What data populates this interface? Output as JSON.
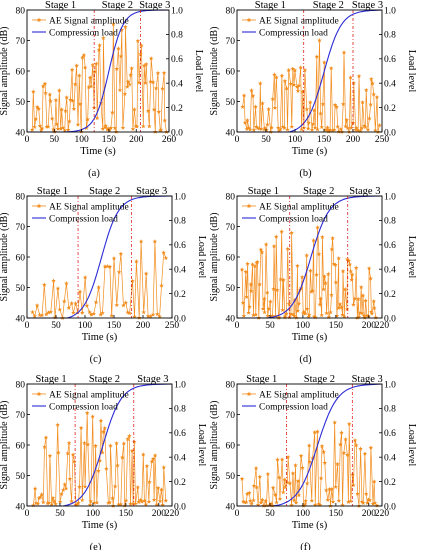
{
  "colors": {
    "ae": "#f28c1c",
    "load": "#2b2bd6",
    "stage": "#e0201b",
    "axis": "#000000"
  },
  "chart_data": [
    {
      "id": "a",
      "caption": "(a)",
      "type": "line",
      "xlabel": "Time (s)",
      "ylabel": "Signal amplitude (dB)",
      "y2label": "Load level",
      "xlim": [
        0,
        260
      ],
      "xticks": [
        0,
        50,
        100,
        150,
        200,
        260
      ],
      "ylim": [
        40,
        80
      ],
      "yticks": [
        40,
        50,
        60,
        70,
        80
      ],
      "y2lim": [
        0,
        1
      ],
      "y2ticks": [
        "0.0",
        "0.2",
        "0.4",
        "0.6",
        "0.8",
        "1.0"
      ],
      "stage_labels": [
        "Stage 1",
        "Stage 2",
        "Stage 3"
      ],
      "stage_boundaries": [
        123,
        208
      ],
      "legend": [
        "AE Signal amplitude",
        "Compression load"
      ],
      "legend_position": "top-left",
      "load_curve": {
        "x_start": 65,
        "x_mid": 150,
        "x_end": 250,
        "steepness": 13
      },
      "ae_series": {
        "name": "AE Signal amplitude",
        "x_start": 10,
        "x_end": 255,
        "count": 110,
        "peak_x": 160,
        "max_amplitude": 76,
        "seed": 11
      }
    },
    {
      "id": "b",
      "caption": "(b)",
      "type": "line",
      "xlabel": "Time (s)",
      "ylabel": "Signal amplitude (dB)",
      "y2label": "Load level",
      "xlim": [
        0,
        250
      ],
      "xticks": [
        0,
        50,
        100,
        150,
        200,
        250
      ],
      "ylim": [
        40,
        80
      ],
      "yticks": [
        40,
        50,
        60,
        70,
        80
      ],
      "y2lim": [
        0,
        1
      ],
      "y2ticks": [
        "0.0",
        "0.2",
        "0.4",
        "0.6",
        "0.8",
        "1.0"
      ],
      "stage_labels": [
        "Stage 1",
        "Stage 2",
        "Stage 3"
      ],
      "stage_boundaries": [
        115,
        200
      ],
      "legend": [
        "AE Signal amplitude",
        "Compression load"
      ],
      "legend_position": "top-left",
      "load_curve": {
        "x_start": 90,
        "x_mid": 150,
        "x_end": 235,
        "steepness": 15
      },
      "ae_series": {
        "name": "AE Signal amplitude",
        "x_start": 10,
        "x_end": 245,
        "count": 110,
        "peak_x": 145,
        "max_amplitude": 72,
        "seed": 23
      }
    },
    {
      "id": "c",
      "caption": "(c)",
      "type": "line",
      "xlabel": "Time (s)",
      "ylabel": "Signal amplitude (dB)",
      "y2label": "Load level",
      "xlim": [
        0,
        250
      ],
      "xticks": [
        0,
        50,
        100,
        150,
        200,
        250
      ],
      "ylim": [
        40,
        80
      ],
      "yticks": [
        40,
        50,
        60,
        70,
        80
      ],
      "y2lim": [
        0,
        1
      ],
      "y2ticks": [
        "0.0",
        "0.2",
        "0.4",
        "0.6",
        "0.8",
        "1.0"
      ],
      "stage_labels": [
        "Stage 1",
        "Stage 2",
        "Stage 3"
      ],
      "stage_boundaries": [
        88,
        180
      ],
      "legend": [
        "AE Signal amplitude",
        "Compression load"
      ],
      "legend_position": "top-left",
      "load_curve": {
        "x_start": 70,
        "x_mid": 128,
        "x_end": 220,
        "steepness": 15
      },
      "ae_series": {
        "name": "AE Signal amplitude",
        "x_start": 10,
        "x_end": 240,
        "count": 60,
        "peak_x": 210,
        "max_amplitude": 68,
        "seed": 37
      }
    },
    {
      "id": "d",
      "caption": "(d)",
      "type": "line",
      "xlabel": "Time (s)",
      "ylabel": "Signal amplitude (dB)",
      "y2label": "Load level",
      "xlim": [
        0,
        220
      ],
      "xticks": [
        0,
        50,
        100,
        150,
        200,
        220
      ],
      "ylim": [
        40,
        80
      ],
      "yticks": [
        40,
        50,
        60,
        70,
        80
      ],
      "y2lim": [
        0,
        1
      ],
      "y2ticks": [
        "0.0",
        "0.2",
        "0.4",
        "0.6",
        "0.8",
        "1.0"
      ],
      "stage_labels": [
        "Stage 1",
        "Stage 2",
        "Stage 3"
      ],
      "stage_boundaries": [
        80,
        168
      ],
      "legend": [
        "AE Signal amplitude",
        "Compression load"
      ],
      "legend_position": "top-left",
      "load_curve": {
        "x_start": 45,
        "x_mid": 112,
        "x_end": 200,
        "steepness": 14
      },
      "ae_series": {
        "name": "AE Signal amplitude",
        "x_start": 8,
        "x_end": 210,
        "count": 130,
        "peak_x": 100,
        "max_amplitude": 72,
        "seed": 41
      }
    },
    {
      "id": "e",
      "caption": "(e)",
      "type": "line",
      "xlabel": "Time (s)",
      "ylabel": "Signal amplitude (dB)",
      "y2label": "Load level",
      "xlim": [
        0,
        220
      ],
      "xticks": [
        0,
        50,
        100,
        150,
        200,
        220
      ],
      "ylim": [
        40,
        80
      ],
      "yticks": [
        40,
        50,
        60,
        70,
        80
      ],
      "y2lim": [
        0,
        1
      ],
      "y2ticks": [
        "0.0",
        "0.2",
        "0.4",
        "0.6",
        "0.8",
        "1.0"
      ],
      "stage_labels": [
        "Stage 1",
        "Stage 2",
        "Stage 3"
      ],
      "stage_boundaries": [
        73,
        162
      ],
      "legend": [
        "AE Signal amplitude",
        "Compression load"
      ],
      "legend_position": "top-left",
      "load_curve": {
        "x_start": 55,
        "x_mid": 115,
        "x_end": 200,
        "steepness": 14
      },
      "ae_series": {
        "name": "AE Signal amplitude",
        "x_start": 10,
        "x_end": 210,
        "count": 95,
        "peak_x": 85,
        "max_amplitude": 75,
        "seed": 53
      }
    },
    {
      "id": "f",
      "caption": "(f)",
      "type": "line",
      "xlabel": "Time (s)",
      "ylabel": "Signal amplitude (dB)",
      "y2label": "Load level",
      "xlim": [
        0,
        220
      ],
      "xticks": [
        0,
        50,
        100,
        150,
        200,
        220
      ],
      "ylim": [
        40,
        80
      ],
      "yticks": [
        40,
        50,
        60,
        70,
        80
      ],
      "y2lim": [
        0,
        1
      ],
      "y2ticks": [
        "0.0",
        "0.2",
        "0.4",
        "0.6",
        "0.8",
        "1.0"
      ],
      "stage_labels": [
        "Stage 1",
        "Stage 2",
        "Stage 3"
      ],
      "stage_boundaries": [
        75,
        175
      ],
      "legend": [
        "AE Signal amplitude",
        "Compression load"
      ],
      "legend_position": "top-left",
      "load_curve": {
        "x_start": 55,
        "x_mid": 122,
        "x_end": 195,
        "steepness": 15
      },
      "ae_series": {
        "name": "AE Signal amplitude",
        "x_start": 8,
        "x_end": 212,
        "count": 100,
        "peak_x": 150,
        "max_amplitude": 68,
        "seed": 67
      }
    }
  ]
}
